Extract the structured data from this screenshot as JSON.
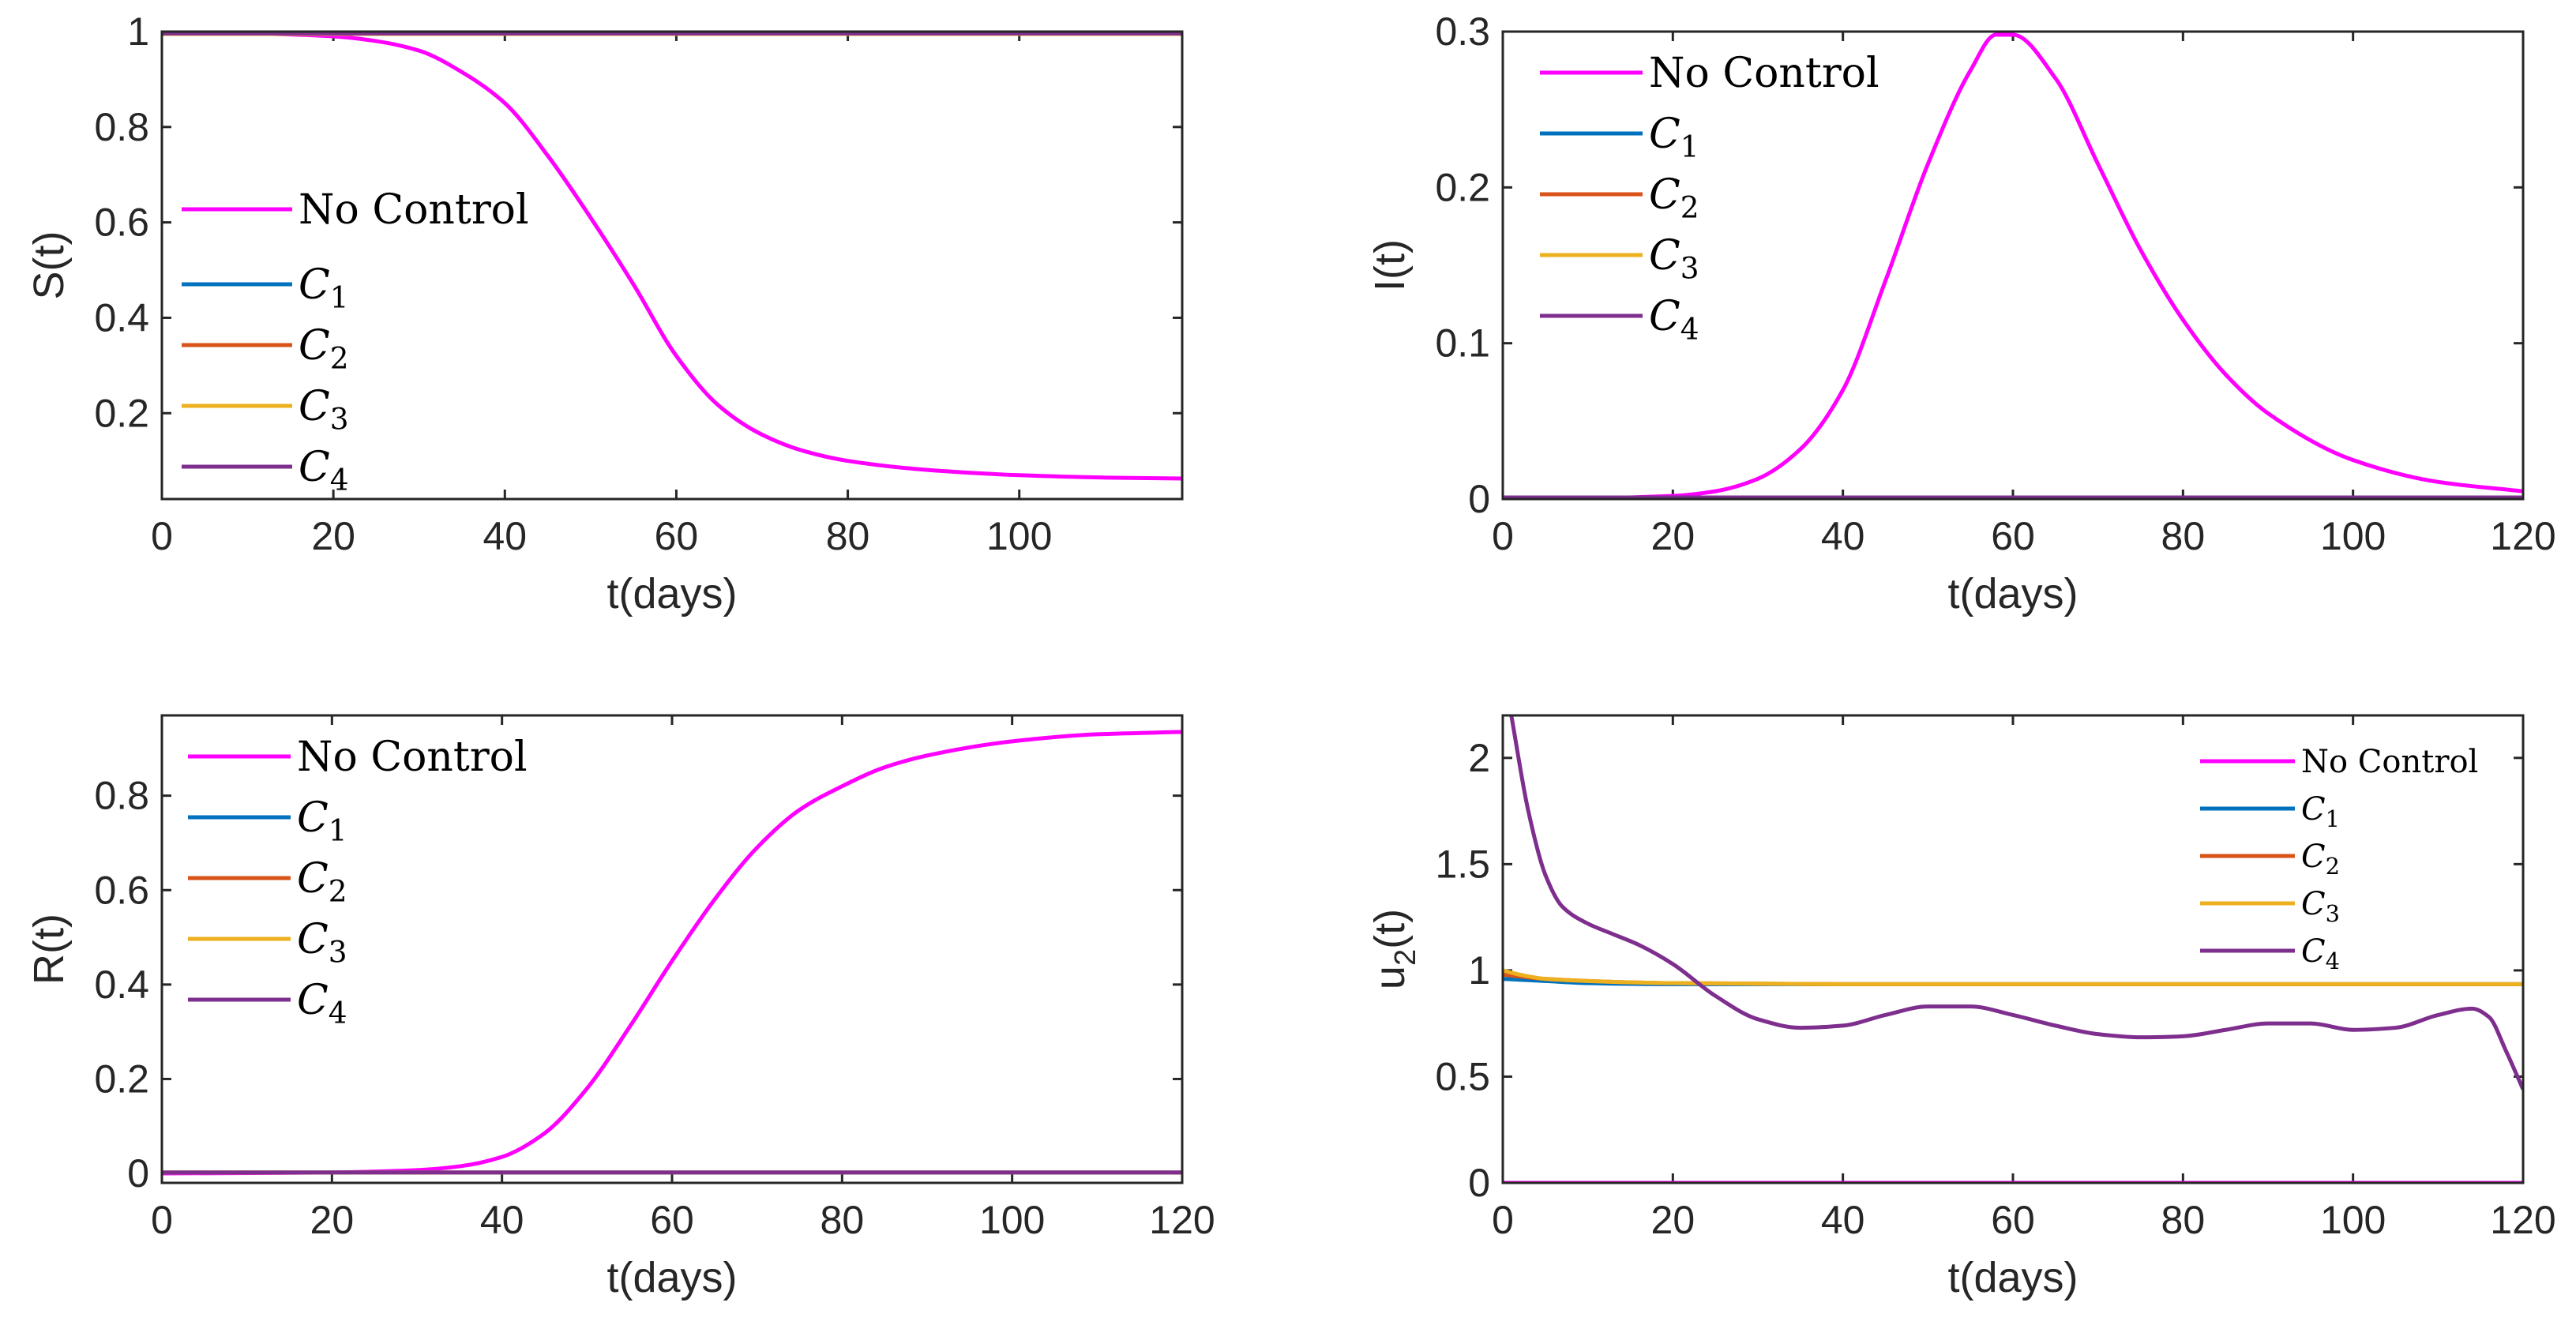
{
  "chart_data": [
    {
      "type": "line",
      "xlabel": "t(days)",
      "ylabel": "S(t)",
      "xlim": [
        0,
        119
      ],
      "ylim": [
        0.02,
        1.0
      ],
      "xticks": [
        0,
        20,
        40,
        60,
        80,
        100
      ],
      "yticks": [
        0.2,
        0.4,
        0.6,
        0.8,
        1
      ],
      "legend_position": "middle-left",
      "legend": [
        "No Control",
        "C1",
        "C2",
        "C3",
        "C4"
      ],
      "series": [
        {
          "name": "No Control",
          "color": "#ff00ff",
          "x": [
            0,
            10,
            20,
            25,
            30,
            35,
            40,
            45,
            50,
            55,
            60,
            65,
            70,
            75,
            80,
            90,
            100,
            110,
            119
          ],
          "y": [
            0.998,
            0.996,
            0.99,
            0.98,
            0.96,
            0.915,
            0.85,
            0.74,
            0.61,
            0.47,
            0.32,
            0.215,
            0.155,
            0.12,
            0.1,
            0.08,
            0.07,
            0.065,
            0.063
          ]
        },
        {
          "name": "C1",
          "color": "#0072bd",
          "x": [
            0,
            119
          ],
          "y": [
            0.995,
            0.995
          ]
        },
        {
          "name": "C2",
          "color": "#d95319",
          "x": [
            0,
            119
          ],
          "y": [
            0.995,
            0.995
          ]
        },
        {
          "name": "C3",
          "color": "#edb120",
          "x": [
            0,
            119
          ],
          "y": [
            0.995,
            0.995
          ]
        },
        {
          "name": "C4",
          "color": "#7e2f8e",
          "x": [
            0,
            119
          ],
          "y": [
            0.996,
            0.996
          ]
        }
      ]
    },
    {
      "type": "line",
      "xlabel": "t(days)",
      "ylabel": "I(t)",
      "xlim": [
        0,
        120
      ],
      "ylim": [
        0,
        0.3
      ],
      "xticks": [
        0,
        20,
        40,
        60,
        80,
        100,
        120
      ],
      "yticks": [
        0,
        0.1,
        0.2,
        0.3
      ],
      "legend_position": "top-left",
      "legend": [
        "No Control",
        "C1",
        "C2",
        "C3",
        "C4"
      ],
      "series": [
        {
          "name": "No Control",
          "color": "#ff00ff",
          "x": [
            0,
            10,
            20,
            25,
            30,
            35,
            40,
            45,
            50,
            55,
            58,
            60,
            65,
            70,
            75,
            80,
            85,
            90,
            100,
            110,
            120
          ],
          "y": [
            0,
            0.0005,
            0.002,
            0.005,
            0.013,
            0.032,
            0.07,
            0.14,
            0.215,
            0.275,
            0.298,
            0.298,
            0.27,
            0.215,
            0.16,
            0.115,
            0.08,
            0.055,
            0.025,
            0.011,
            0.005
          ]
        },
        {
          "name": "C1",
          "color": "#0072bd",
          "x": [
            0,
            120
          ],
          "y": [
            0.001,
            0.001
          ]
        },
        {
          "name": "C2",
          "color": "#d95319",
          "x": [
            0,
            120
          ],
          "y": [
            0.001,
            0.001
          ]
        },
        {
          "name": "C3",
          "color": "#edb120",
          "x": [
            0,
            120
          ],
          "y": [
            0.001,
            0.001
          ]
        },
        {
          "name": "C4",
          "color": "#7e2f8e",
          "x": [
            0,
            120
          ],
          "y": [
            0.001,
            0.001
          ]
        }
      ]
    },
    {
      "type": "line",
      "xlabel": "t(days)",
      "ylabel": "R(t)",
      "xlim": [
        0,
        120
      ],
      "ylim": [
        -0.02,
        0.97
      ],
      "xticks": [
        0,
        20,
        40,
        60,
        80,
        100,
        120
      ],
      "yticks": [
        0,
        0.2,
        0.4,
        0.6,
        0.8
      ],
      "legend_position": "top-left",
      "legend": [
        "No Control",
        "C1",
        "C2",
        "C3",
        "C4"
      ],
      "series": [
        {
          "name": "No Control",
          "color": "#ff00ff",
          "x": [
            0,
            20,
            30,
            35,
            40,
            45,
            50,
            55,
            60,
            65,
            70,
            75,
            80,
            85,
            90,
            100,
            110,
            120
          ],
          "y": [
            0,
            0.002,
            0.007,
            0.015,
            0.035,
            0.085,
            0.18,
            0.31,
            0.45,
            0.58,
            0.69,
            0.77,
            0.82,
            0.86,
            0.885,
            0.915,
            0.93,
            0.935
          ]
        },
        {
          "name": "C1",
          "color": "#0072bd",
          "x": [
            0,
            120
          ],
          "y": [
            0.002,
            0.002
          ]
        },
        {
          "name": "C2",
          "color": "#d95319",
          "x": [
            0,
            120
          ],
          "y": [
            0.002,
            0.002
          ]
        },
        {
          "name": "C3",
          "color": "#edb120",
          "x": [
            0,
            120
          ],
          "y": [
            0.002,
            0.002
          ]
        },
        {
          "name": "C4",
          "color": "#7e2f8e",
          "x": [
            0,
            120
          ],
          "y": [
            0.002,
            0.002
          ]
        }
      ]
    },
    {
      "type": "line",
      "xlabel": "t(days)",
      "ylabel": "u2(t)",
      "ylabel_main": "u",
      "ylabel_sub": "2",
      "ylabel_suffix": "(t)",
      "xlim": [
        0,
        120
      ],
      "ylim": [
        0,
        2.2
      ],
      "xticks": [
        0,
        20,
        40,
        60,
        80,
        100,
        120
      ],
      "yticks": [
        0,
        0.5,
        1,
        1.5,
        2
      ],
      "legend_position": "top-right",
      "legend": [
        "No Control",
        "C1",
        "C2",
        "C3",
        "C4"
      ],
      "series": [
        {
          "name": "No Control",
          "color": "#ff00ff",
          "x": [
            0,
            120
          ],
          "y": [
            0,
            0
          ]
        },
        {
          "name": "C1",
          "color": "#0072bd",
          "x": [
            0,
            5,
            10,
            20,
            40,
            60,
            80,
            100,
            120
          ],
          "y": [
            0.96,
            0.95,
            0.94,
            0.935,
            0.935,
            0.935,
            0.935,
            0.935,
            0.935
          ]
        },
        {
          "name": "C2",
          "color": "#d95319",
          "x": [
            0,
            5,
            10,
            20,
            40,
            60,
            80,
            100,
            120
          ],
          "y": [
            0.98,
            0.96,
            0.95,
            0.94,
            0.935,
            0.935,
            0.935,
            0.935,
            0.935
          ]
        },
        {
          "name": "C3",
          "color": "#edb120",
          "x": [
            0,
            2,
            5,
            10,
            20,
            40,
            60,
            80,
            100,
            120
          ],
          "y": [
            1.0,
            0.98,
            0.96,
            0.95,
            0.94,
            0.935,
            0.935,
            0.935,
            0.935,
            0.935
          ]
        },
        {
          "name": "C4",
          "color": "#7e2f8e",
          "x": [
            1,
            3,
            5,
            7,
            10,
            13,
            16,
            20,
            25,
            30,
            35,
            40,
            45,
            50,
            55,
            60,
            65,
            70,
            75,
            80,
            85,
            90,
            95,
            100,
            105,
            110,
            114,
            116,
            118,
            120
          ],
          "y": [
            2.2,
            1.75,
            1.45,
            1.3,
            1.22,
            1.17,
            1.12,
            1.03,
            0.88,
            0.77,
            0.73,
            0.74,
            0.79,
            0.83,
            0.83,
            0.79,
            0.74,
            0.7,
            0.685,
            0.69,
            0.72,
            0.75,
            0.75,
            0.72,
            0.73,
            0.79,
            0.82,
            0.78,
            0.62,
            0.44
          ]
        }
      ]
    }
  ]
}
